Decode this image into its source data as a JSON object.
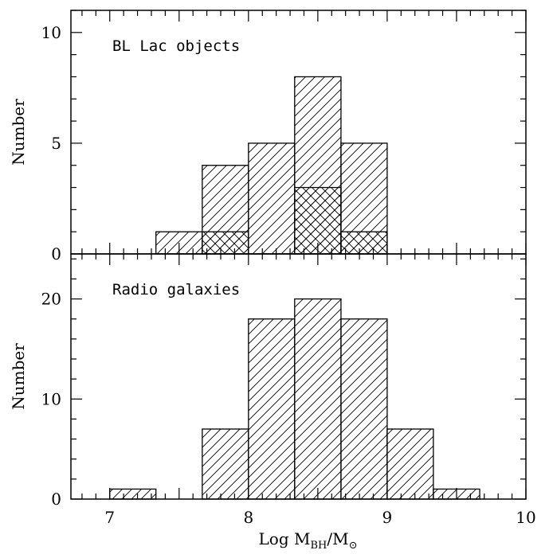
{
  "chart_data": [
    {
      "type": "bar",
      "panel_label": "BL Lac objects",
      "ylabel": "Number",
      "ylim": [
        0,
        11
      ],
      "yticks": [
        0,
        5,
        10
      ],
      "xlim": [
        6.72,
        10
      ],
      "xticks": [
        7,
        8,
        9,
        10
      ],
      "bin_edges": [
        7.333,
        7.667,
        8.0,
        8.333,
        8.667,
        9.0
      ],
      "series": [
        {
          "values": [
            1,
            4,
            5,
            8,
            5
          ],
          "hatch": "single"
        },
        {
          "values": [
            0,
            1,
            0,
            3,
            1
          ],
          "hatch": "cross"
        }
      ]
    },
    {
      "type": "bar",
      "panel_label": "Radio galaxies",
      "ylabel": "Number",
      "xlabel_main": "Log M",
      "xlabel_sub": "BH",
      "xlabel_mid": "/M",
      "xlabel_sub2": "⊙",
      "ylim": [
        0,
        24.5
      ],
      "yticks": [
        0,
        10,
        20
      ],
      "xlim": [
        6.72,
        10
      ],
      "xticks": [
        7,
        8,
        9,
        10
      ],
      "bin_edges": [
        7.0,
        7.333,
        7.667,
        8.0,
        8.333,
        8.667,
        9.0,
        9.333,
        9.667
      ],
      "series": [
        {
          "values": [
            1,
            0,
            7,
            18,
            20,
            18,
            7,
            1
          ],
          "hatch": "single"
        }
      ]
    }
  ]
}
